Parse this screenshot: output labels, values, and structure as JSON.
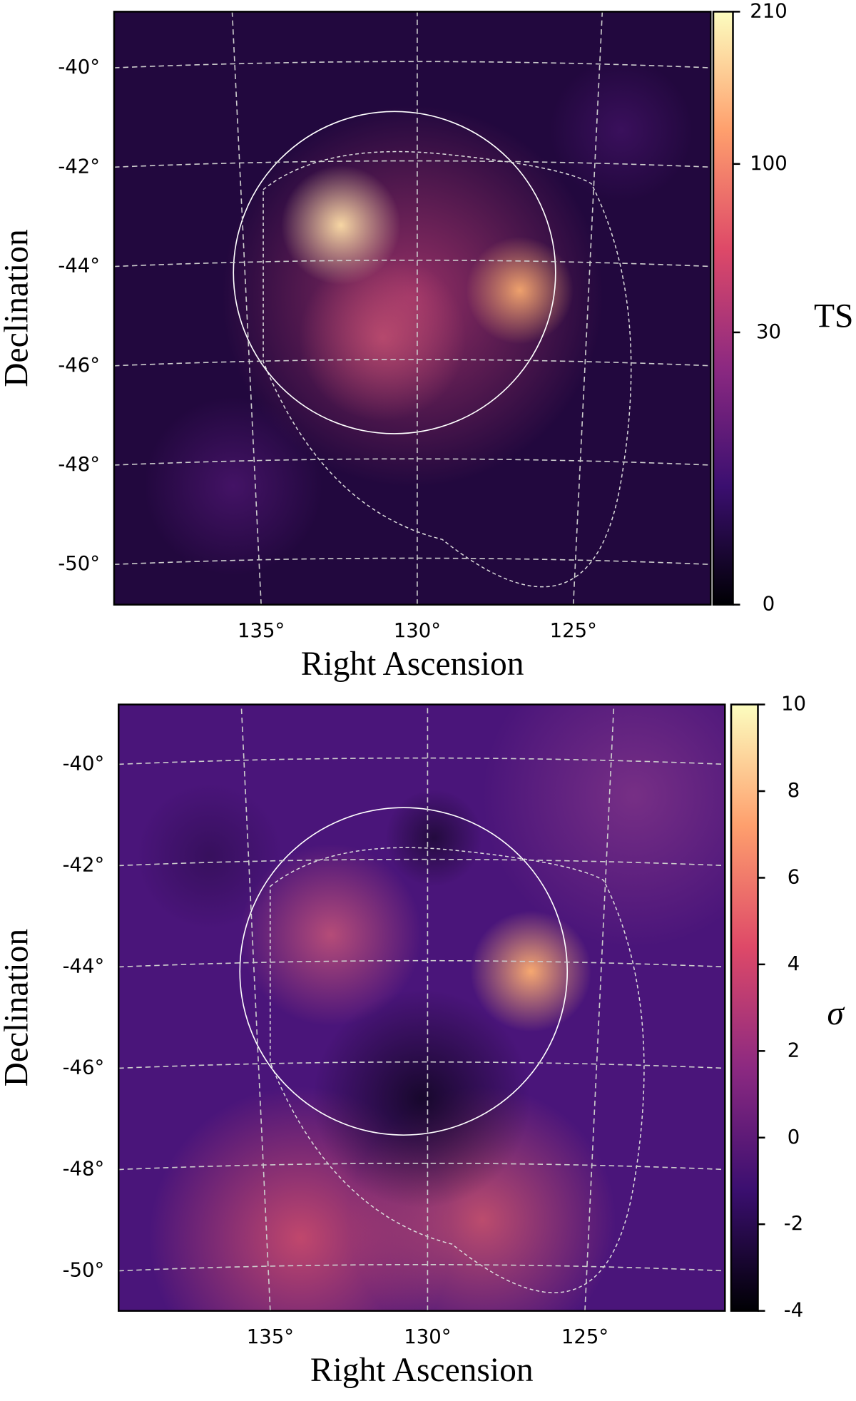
{
  "chart_data": [
    {
      "type": "heatmap",
      "xlabel": "Right Ascension",
      "ylabel": "Declination",
      "xlim": [
        139.71,
        120.6
      ],
      "ylim": [
        -50.81,
        -38.87
      ],
      "xticks": [
        {
          "value": 135,
          "label": "135°"
        },
        {
          "value": 130,
          "label": "130°"
        },
        {
          "value": 125,
          "label": "125°"
        }
      ],
      "yticks": [
        {
          "value": -40,
          "label": "-40°"
        },
        {
          "value": -42,
          "label": "-42°"
        },
        {
          "value": -44,
          "label": "-44°"
        },
        {
          "value": -46,
          "label": "-46°"
        },
        {
          "value": -48,
          "label": "-48°"
        },
        {
          "value": -50,
          "label": "-50°"
        }
      ],
      "grid": true,
      "colorbar_label": "TS",
      "clim": [
        0,
        210
      ],
      "color_scale": "power",
      "color_exponent": 0.4,
      "cticks": [
        0,
        30,
        100,
        210
      ]
    },
    {
      "type": "heatmap",
      "xlabel": "Right Ascension",
      "ylabel": "Declination",
      "xlim": [
        139.82,
        120.55
      ],
      "ylim": [
        -50.79,
        -38.82
      ],
      "xticks": [
        {
          "value": 135,
          "label": "135°"
        },
        {
          "value": 130,
          "label": "130°"
        },
        {
          "value": 125,
          "label": "125°"
        }
      ],
      "yticks": [
        {
          "value": -40,
          "label": "-40°"
        },
        {
          "value": -42,
          "label": "-42°"
        },
        {
          "value": -44,
          "label": "-44°"
        },
        {
          "value": -46,
          "label": "-46°"
        },
        {
          "value": -48,
          "label": "-48°"
        },
        {
          "value": -50,
          "label": "-50°"
        }
      ],
      "grid": true,
      "colorbar_label": "σ",
      "clim": [
        -4,
        10
      ],
      "color_scale": "linear",
      "cticks": [
        -4,
        -2,
        0,
        2,
        4,
        6,
        8,
        10
      ]
    }
  ]
}
